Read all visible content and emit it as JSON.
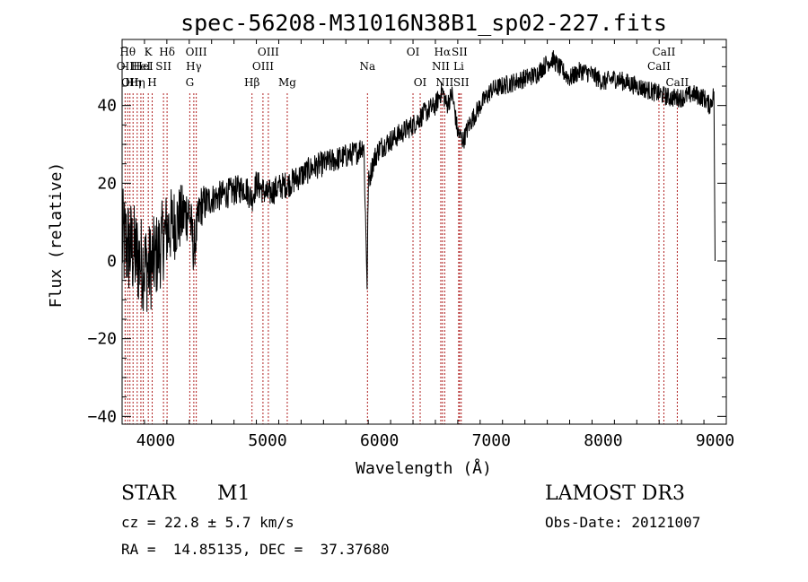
{
  "chart_data": {
    "type": "line",
    "title": "spec-56208-M31016N38B1_sp02-227.fits",
    "xlabel": "Wavelength (Å)",
    "ylabel": "Flux (relative)",
    "xlim": [
      3700,
      9100
    ],
    "ylim": [
      -42,
      57
    ],
    "x_ticks": [
      4000,
      5000,
      6000,
      7000,
      8000,
      9000
    ],
    "x_tick_labels": [
      "4000",
      "5000",
      "6000",
      "7000",
      "8000",
      "9000"
    ],
    "y_ticks": [
      -40,
      -20,
      0,
      20,
      40
    ],
    "y_tick_labels": [
      "−40",
      "−20",
      "0",
      "20",
      "40"
    ],
    "series": [
      {
        "name": "flux",
        "x": [
          3700,
          3780,
          3860,
          3940,
          4020,
          4100,
          4180,
          4260,
          4300,
          4340,
          4400,
          4500,
          4600,
          4700,
          4800,
          4860,
          4900,
          5000,
          5100,
          5200,
          5300,
          5400,
          5500,
          5600,
          5700,
          5800,
          5860,
          5890,
          5900,
          5950,
          6000,
          6100,
          6200,
          6300,
          6400,
          6500,
          6560,
          6600,
          6650,
          6700,
          6750,
          6800,
          6900,
          7000,
          7100,
          7200,
          7300,
          7400,
          7500,
          7550,
          7600,
          7700,
          7800,
          7900,
          8000,
          8100,
          8200,
          8300,
          8400,
          8500,
          8600,
          8700,
          8800,
          8900,
          8950,
          8990,
          9000
        ],
        "y": [
          5,
          3,
          0,
          -2,
          2,
          8,
          10,
          12,
          13,
          3,
          14,
          16,
          17,
          18,
          19,
          16,
          20,
          17,
          19,
          20,
          22,
          24,
          25,
          26,
          27,
          28,
          30,
          -6,
          20,
          26,
          29,
          31,
          33,
          35,
          38,
          40,
          44,
          40,
          43,
          33,
          31,
          35,
          40,
          44,
          45,
          46,
          47,
          48,
          51,
          52,
          50,
          47,
          49,
          48,
          46,
          47,
          46,
          45,
          44,
          43,
          42,
          42,
          43,
          42,
          40,
          43,
          0
        ]
      }
    ],
    "noise_amplitude_by_wavelength": [
      {
        "x": 3700,
        "amp": 14
      },
      {
        "x": 4150,
        "amp": 10
      },
      {
        "x": 4500,
        "amp": 4
      },
      {
        "x": 6000,
        "amp": 3
      },
      {
        "x": 7000,
        "amp": 2.5
      },
      {
        "x": 9000,
        "amp": 2.5
      }
    ],
    "line_markers": [
      {
        "x": 3727,
        "label": "OII",
        "row": 2
      },
      {
        "x": 3750,
        "label": "Hθ",
        "row": 1
      },
      {
        "x": 3770,
        "label": "OII",
        "row": 3
      },
      {
        "x": 3798,
        "label": "Hη",
        "row": 3
      },
      {
        "x": 3835,
        "label": "Hη",
        "row": 3
      },
      {
        "x": 3868,
        "label": "HeI",
        "row": 2
      },
      {
        "x": 3889,
        "label": "HeI",
        "row": 2
      },
      {
        "x": 3934,
        "label": "K",
        "row": 1
      },
      {
        "x": 3969,
        "label": "H",
        "row": 3
      },
      {
        "x": 4070,
        "label": "SII",
        "row": 2
      },
      {
        "x": 4102,
        "label": "Hδ",
        "row": 1
      },
      {
        "x": 4305,
        "label": "G",
        "row": 3
      },
      {
        "x": 4341,
        "label": "Hγ",
        "row": 2
      },
      {
        "x": 4363,
        "label": "OIII",
        "row": 1
      },
      {
        "x": 4861,
        "label": "Hβ",
        "row": 3
      },
      {
        "x": 4959,
        "label": "OIII",
        "row": 2
      },
      {
        "x": 5007,
        "label": "OIII",
        "row": 1
      },
      {
        "x": 5176,
        "label": "Mg",
        "row": 3
      },
      {
        "x": 5893,
        "label": "Na",
        "row": 2
      },
      {
        "x": 6300,
        "label": "OI",
        "row": 1
      },
      {
        "x": 6364,
        "label": "OI",
        "row": 3
      },
      {
        "x": 6548,
        "label": "NII",
        "row": 2
      },
      {
        "x": 6563,
        "label": "Hα",
        "row": 1
      },
      {
        "x": 6583,
        "label": "NII",
        "row": 3
      },
      {
        "x": 6708,
        "label": "Li",
        "row": 2
      },
      {
        "x": 6716,
        "label": "SII",
        "row": 1
      },
      {
        "x": 6731,
        "label": "SII",
        "row": 3
      },
      {
        "x": 8498,
        "label": "CaII",
        "row": 2
      },
      {
        "x": 8542,
        "label": "CaII",
        "row": 1
      },
      {
        "x": 8662,
        "label": "CaII",
        "row": 3
      }
    ]
  },
  "info": {
    "object_class": "STAR",
    "subclass": "M1",
    "redshift": "cz = 22.8 ± 5.7 km/s",
    "coords": "RA =  14.85135, DEC =  37.37680",
    "survey": "LAMOST DR3",
    "obs_date": "Obs-Date: 20121007"
  }
}
